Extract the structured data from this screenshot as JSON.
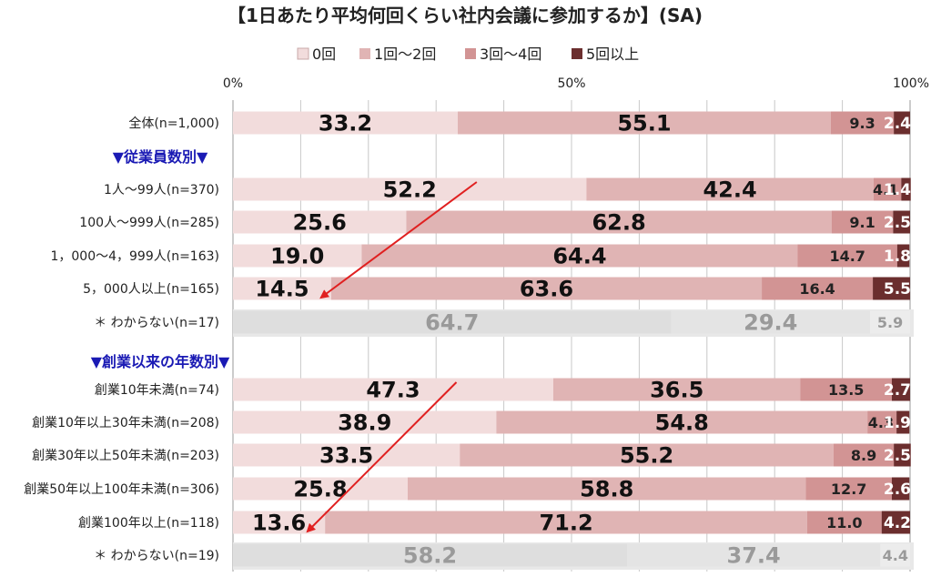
{
  "chart_data": {
    "type": "bar",
    "orientation": "horizontal",
    "stacked": true,
    "percent_scale": true,
    "title": "【1日あたり平均何回くらい社内会議に参加するか】(SA)",
    "xlim": [
      0,
      100
    ],
    "x_ticks": [
      "0%",
      "50%",
      "100%"
    ],
    "grid": true,
    "legend_position": "top",
    "legend": [
      "0回",
      "1回～2回",
      "3回～4回",
      "5回以上"
    ],
    "colors": [
      "#f2dcdc",
      "#e0b4b4",
      "#d29494",
      "#6b2e2e"
    ],
    "muted_colors": [
      "#dedede",
      "#e4e4e4",
      "#ececec"
    ],
    "rows": [
      {
        "kind": "data",
        "label": "全体(n=1,000)",
        "values": [
          33.2,
          55.1,
          9.3,
          2.4
        ],
        "value_labels": [
          "33.2",
          "55.1",
          "9.3",
          "2.4"
        ]
      },
      {
        "kind": "section",
        "label": "▼従業員数別▼"
      },
      {
        "kind": "data",
        "label": "1人～99人(n=370)",
        "values": [
          52.2,
          42.4,
          4.1,
          1.4
        ],
        "value_labels": [
          "52.2",
          "42.4",
          "4.1",
          "1.4"
        ]
      },
      {
        "kind": "data",
        "label": "100人～999人(n=285)",
        "values": [
          25.6,
          62.8,
          9.1,
          2.5
        ],
        "value_labels": [
          "25.6",
          "62.8",
          "9.1",
          "2.5"
        ]
      },
      {
        "kind": "data",
        "label": "1，000～4，999人(n=163)",
        "values": [
          19.0,
          64.4,
          14.7,
          1.8
        ],
        "value_labels": [
          "19.0",
          "64.4",
          "14.7",
          "1.8"
        ]
      },
      {
        "kind": "data",
        "label": "5，000人以上(n=165)",
        "values": [
          14.5,
          63.6,
          16.4,
          5.5
        ],
        "value_labels": [
          "14.5",
          "63.6",
          "16.4",
          "5.5"
        ]
      },
      {
        "kind": "muted",
        "label": "＊ わからない(n=17)",
        "values": [
          64.7,
          29.4,
          5.9
        ],
        "value_labels": [
          "64.7",
          "29.4",
          "5.9"
        ]
      },
      {
        "kind": "section",
        "label": "▼創業以来の年数別▼"
      },
      {
        "kind": "data",
        "label": "創業10年未満(n=74)",
        "values": [
          47.3,
          36.5,
          13.5,
          2.7
        ],
        "value_labels": [
          "47.3",
          "36.5",
          "13.5",
          "2.7"
        ]
      },
      {
        "kind": "data",
        "label": "創業10年以上30年未満(n=208)",
        "values": [
          38.9,
          54.8,
          4.3,
          1.9
        ],
        "value_labels": [
          "38.9",
          "54.8",
          "4.3",
          "1.9"
        ]
      },
      {
        "kind": "data",
        "label": "創業30年以上50年未満(n=203)",
        "values": [
          33.5,
          55.2,
          8.9,
          2.5
        ],
        "value_labels": [
          "33.5",
          "55.2",
          "8.9",
          "2.5"
        ]
      },
      {
        "kind": "data",
        "label": "創業50年以上100年未満(n=306)",
        "values": [
          25.8,
          58.8,
          12.7,
          2.6
        ],
        "value_labels": [
          "25.8",
          "58.8",
          "12.7",
          "2.6"
        ]
      },
      {
        "kind": "data",
        "label": "創業100年以上(n=118)",
        "values": [
          13.6,
          71.2,
          11.0,
          4.2
        ],
        "value_labels": [
          "13.6",
          "71.2",
          "11.0",
          "4.2"
        ]
      },
      {
        "kind": "muted",
        "label": "＊ わからない(n=19)",
        "values": [
          58.2,
          37.4,
          4.4
        ],
        "value_labels": [
          "58.2",
          "37.4",
          "4.4"
        ]
      }
    ],
    "annotations": [
      {
        "type": "arrow",
        "color": "#e02020",
        "from": {
          "row": "1人～99人(n=370)",
          "x": 36
        },
        "to": {
          "row": "5，000人以上(n=165)",
          "x": 13
        }
      },
      {
        "type": "arrow",
        "color": "#e02020",
        "from": {
          "row": "創業10年未満(n=74)",
          "x": 33
        },
        "to": {
          "row": "創業100年以上(n=118)",
          "x": 11
        }
      }
    ]
  }
}
